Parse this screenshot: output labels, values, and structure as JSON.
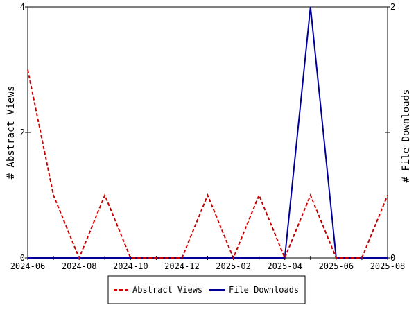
{
  "chart_data": {
    "type": "line",
    "x": [
      "2024-06",
      "2024-07",
      "2024-08",
      "2024-09",
      "2024-10",
      "2024-11",
      "2024-12",
      "2025-01",
      "2025-02",
      "2025-03",
      "2025-04",
      "2025-05",
      "2025-06",
      "2025-07",
      "2025-08"
    ],
    "x_tick_labels": [
      "2024-06",
      "2024-08",
      "2024-10",
      "2024-12",
      "2025-02",
      "2025-04",
      "2025-06",
      "2025-08"
    ],
    "series": [
      {
        "name": "Abstract Views",
        "axis": "left",
        "color": "#cc0000",
        "dash": true,
        "values": [
          3,
          1,
          0,
          1,
          0,
          0,
          0,
          1,
          0,
          1,
          0,
          1,
          0,
          0,
          1
        ]
      },
      {
        "name": "File Downloads",
        "axis": "right",
        "color": "#000099",
        "dash": false,
        "values": [
          0,
          0,
          0,
          0,
          0,
          0,
          0,
          0,
          0,
          0,
          0,
          2,
          0,
          0,
          0
        ]
      }
    ],
    "ylabel_left": "# Abstract Views",
    "ylabel_right": "# File Downloads",
    "ylim_left": [
      0,
      4
    ],
    "ylim_right": [
      0,
      2
    ],
    "y_left_ticks": [
      "0",
      "2",
      "4"
    ],
    "y_right_ticks": [
      "0",
      "1",
      "2"
    ],
    "y_right_tick_labels": [
      "0",
      "",
      "2"
    ],
    "grid": false,
    "legend_position": "bottom"
  }
}
